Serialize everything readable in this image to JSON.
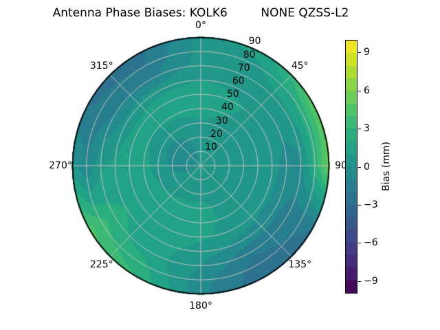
{
  "title": {
    "text": "Antenna Phase Biases: KOLK6         NONE QZSS-L2"
  },
  "polar": {
    "theta_labels": [
      {
        "angle_deg": 0,
        "text": "0°"
      },
      {
        "angle_deg": 45,
        "text": "45°"
      },
      {
        "angle_deg": 90,
        "text": "90"
      },
      {
        "angle_deg": 135,
        "text": "135°"
      },
      {
        "angle_deg": 180,
        "text": "180°"
      },
      {
        "angle_deg": 225,
        "text": "225°"
      },
      {
        "angle_deg": 270,
        "text": "270°"
      },
      {
        "angle_deg": 315,
        "text": "315°"
      }
    ],
    "r_labels": [
      {
        "value": 10,
        "text": "10"
      },
      {
        "value": 20,
        "text": "20"
      },
      {
        "value": 30,
        "text": "30"
      },
      {
        "value": 40,
        "text": "40"
      },
      {
        "value": 50,
        "text": "50"
      },
      {
        "value": 60,
        "text": "60"
      },
      {
        "value": 70,
        "text": "70"
      },
      {
        "value": 80,
        "text": "80"
      },
      {
        "value": 90,
        "text": "90"
      }
    ],
    "r_label_angle_deg": 22.5,
    "r_max": 90,
    "grid_step": 10,
    "spoke_step_deg": 45,
    "grid_color": "#c4c4c4",
    "edge_color": "#000000"
  },
  "colorbar": {
    "label": "Bias (mm)",
    "ticks": [
      {
        "value": 9,
        "text": "9"
      },
      {
        "value": 6,
        "text": "6"
      },
      {
        "value": 3,
        "text": "3"
      },
      {
        "value": 0,
        "text": "0"
      },
      {
        "value": -3,
        "text": "−3"
      },
      {
        "value": -6,
        "text": "−6"
      },
      {
        "value": -9,
        "text": "−9"
      }
    ],
    "vmin": -10,
    "vmax": 10,
    "n_bands": 20
  },
  "colormap": {
    "name": "viridis",
    "stops": [
      "#440154",
      "#482475",
      "#414487",
      "#355f8d",
      "#2a788e",
      "#21918c",
      "#22a884",
      "#44bf70",
      "#7ad151",
      "#bddf26",
      "#fde725"
    ]
  },
  "chart_data": {
    "type": "heatmap",
    "projection": "polar",
    "title": "Antenna Phase Biases: KOLK6         NONE QZSS-L2",
    "colorbar_label": "Bias (mm)",
    "colorbar_ticks": [
      9,
      6,
      3,
      0,
      -3,
      -6,
      -9
    ],
    "vmin": -10,
    "vmax": 10,
    "level_step_mm": 1,
    "azimuth_deg_clockwise_from_north": [
      0,
      30,
      60,
      90,
      120,
      150,
      180,
      210,
      240,
      270,
      300,
      330,
      360
    ],
    "zenith_deg": [
      0,
      10,
      20,
      30,
      40,
      50,
      60,
      70,
      80,
      90
    ],
    "bias_mm": [
      [
        0.1,
        0.1,
        0.1,
        0.1,
        0.1,
        0.1,
        0.1,
        0.1,
        0.1,
        0.1,
        0.1,
        0.1,
        0.1
      ],
      [
        0.2,
        0.3,
        0.5,
        0.6,
        0.9,
        1.0,
        0.8,
        0.3,
        0.0,
        -0.3,
        -0.4,
        -0.2,
        0.2
      ],
      [
        0.5,
        0.5,
        0.6,
        0.5,
        0.8,
        1.0,
        0.9,
        0.6,
        0.3,
        -0.2,
        -0.5,
        -0.1,
        0.5
      ],
      [
        0.9,
        0.8,
        0.6,
        0.4,
        0.6,
        0.9,
        1.1,
        1.2,
        1.0,
        0.6,
        0.2,
        0.5,
        0.9
      ],
      [
        1.4,
        1.0,
        0.6,
        0.4,
        0.5,
        0.8,
        1.3,
        1.6,
        1.6,
        1.4,
        1.0,
        1.2,
        1.4
      ],
      [
        1.5,
        1.1,
        0.7,
        0.5,
        0.3,
        0.5,
        1.2,
        1.7,
        1.9,
        1.6,
        1.4,
        1.6,
        1.5
      ],
      [
        1.0,
        0.8,
        0.3,
        -0.5,
        -0.8,
        -0.4,
        0.6,
        1.5,
        2.0,
        1.2,
        0.3,
        0.6,
        1.0
      ],
      [
        0.5,
        0.6,
        0.8,
        -0.3,
        -1.5,
        -1.8,
        0.0,
        1.5,
        2.4,
        0.8,
        -1.0,
        -1.3,
        0.5
      ],
      [
        0.3,
        0.8,
        2.4,
        2.5,
        -1.8,
        -2.4,
        -0.6,
        2.2,
        3.4,
        -1.0,
        -1.8,
        -2.0,
        0.3
      ],
      [
        0.4,
        1.5,
        4.8,
        5.6,
        -2.0,
        -2.8,
        -0.8,
        3.0,
        4.4,
        0.5,
        -2.2,
        -2.4,
        0.4
      ]
    ]
  }
}
